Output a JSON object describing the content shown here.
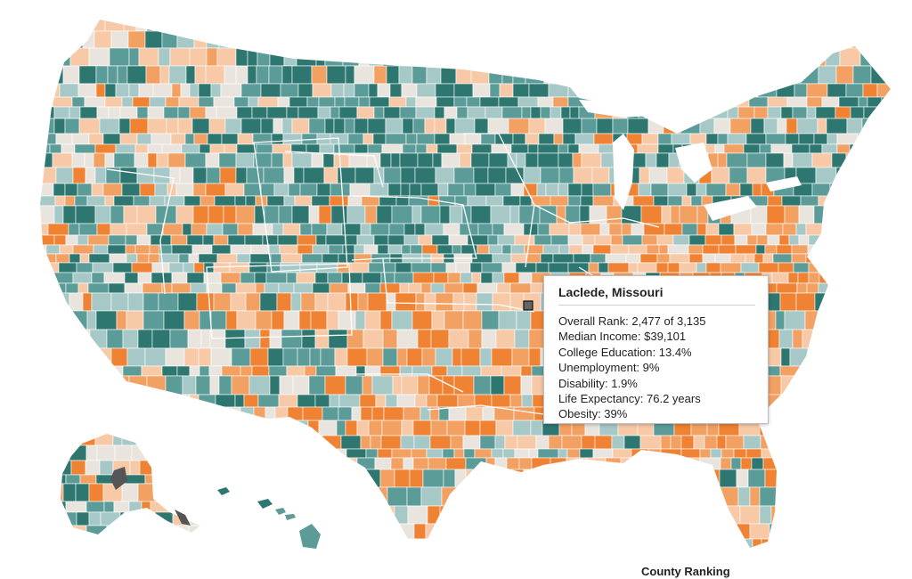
{
  "palette": [
    "#2e7771",
    "#5b9c99",
    "#a6c9c8",
    "#e9e5de",
    "#f7c9a6",
    "#f3a163",
    "#ef8333"
  ],
  "highlight_color": "#666666",
  "tooltip": {
    "title": "Laclede, Missouri",
    "rows": [
      "Overall Rank: 2,477 of 3,135",
      "Median Income: $39,101",
      "College Education: 13.4%",
      "Unemployment: 9%",
      "Disability: 1.9%",
      "Life Expectancy: 76.2 years",
      "Obesity: 39%"
    ]
  },
  "legend_caption": "County Ranking"
}
